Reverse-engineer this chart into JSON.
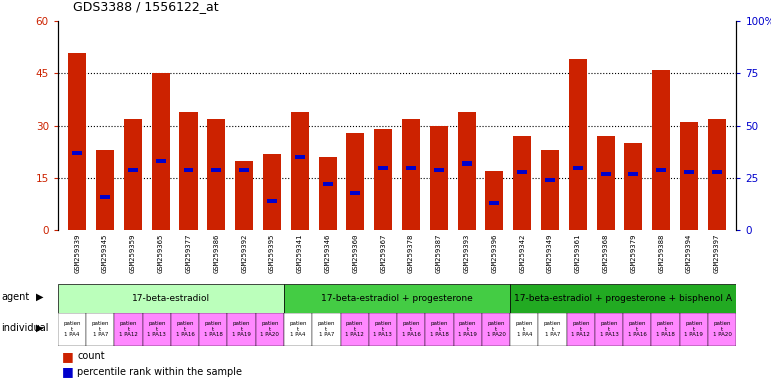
{
  "title": "GDS3388 / 1556122_at",
  "gsm_ids": [
    "GSM259339",
    "GSM259345",
    "GSM259359",
    "GSM259365",
    "GSM259377",
    "GSM259386",
    "GSM259392",
    "GSM259395",
    "GSM259341",
    "GSM259346",
    "GSM259360",
    "GSM259367",
    "GSM259378",
    "GSM259387",
    "GSM259393",
    "GSM259396",
    "GSM259342",
    "GSM259349",
    "GSM259361",
    "GSM259368",
    "GSM259379",
    "GSM259388",
    "GSM259394",
    "GSM259397"
  ],
  "counts": [
    51,
    23,
    32,
    45,
    34,
    32,
    20,
    22,
    34,
    21,
    28,
    29,
    32,
    30,
    34,
    17,
    27,
    23,
    49,
    27,
    25,
    46,
    31,
    32
  ],
  "percentile_ranks": [
    37,
    16,
    29,
    33,
    29,
    29,
    29,
    14,
    35,
    22,
    18,
    30,
    30,
    29,
    32,
    13,
    28,
    24,
    30,
    27,
    27,
    29,
    28,
    28
  ],
  "bar_color": "#cc2200",
  "pct_color": "#0000cc",
  "agent_groups": [
    {
      "label": "17-beta-estradiol",
      "start": 0,
      "end": 8,
      "color": "#bbffbb"
    },
    {
      "label": "17-beta-estradiol + progesterone",
      "start": 8,
      "end": 16,
      "color": "#44cc44"
    },
    {
      "label": "17-beta-estradiol + progesterone + bisphenol A",
      "start": 16,
      "end": 24,
      "color": "#22aa22"
    }
  ],
  "indiv_short": [
    "patien\nt\n1 PA4",
    "patien\nt\n1 PA7",
    "patien\nt\n1 PA12",
    "patien\nt\n1 PA13",
    "patien\nt\n1 PA16",
    "patien\nt\n1 PA18",
    "patien\nt\n1 PA19",
    "patien\nt\n1 PA20",
    "patien\nt\n1 PA4",
    "patien\nt\n1 PA7",
    "patien\nt\n1 PA12",
    "patien\nt\n1 PA13",
    "patien\nt\n1 PA16",
    "patien\nt\n1 PA18",
    "patien\nt\n1 PA19",
    "patien\nt\n1 PA20",
    "patien\nt\n1 PA4",
    "patien\nt\n1 PA7",
    "patien\nt\n1 PA12",
    "patien\nt\n1 PA13",
    "patien\nt\n1 PA16",
    "patien\nt\n1 PA18",
    "patien\nt\n1 PA19",
    "patien\nt\n1 PA20"
  ],
  "indiv_colors": [
    "#ffffff",
    "#ffffff",
    "#ff88ff",
    "#ff88ff",
    "#ff88ff",
    "#ff88ff",
    "#ff88ff",
    "#ff88ff",
    "#ffffff",
    "#ffffff",
    "#ff88ff",
    "#ff88ff",
    "#ff88ff",
    "#ff88ff",
    "#ff88ff",
    "#ff88ff",
    "#ffffff",
    "#ffffff",
    "#ff88ff",
    "#ff88ff",
    "#ff88ff",
    "#ff88ff",
    "#ff88ff",
    "#ff88ff"
  ]
}
